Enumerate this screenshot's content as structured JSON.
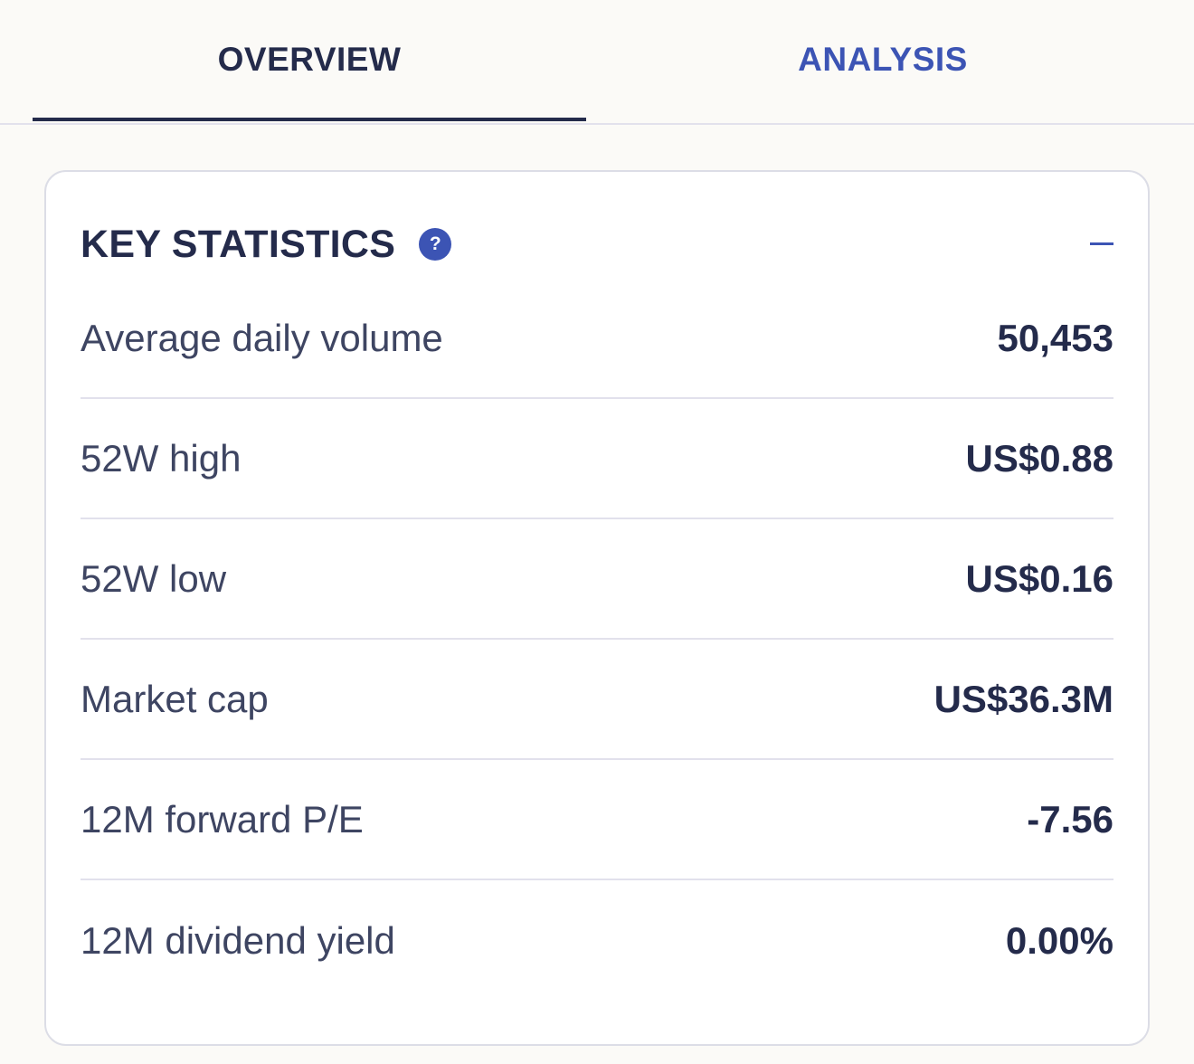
{
  "tabs": [
    {
      "label": "OVERVIEW",
      "active": true
    },
    {
      "label": "ANALYSIS",
      "active": false
    }
  ],
  "card": {
    "title": "KEY STATISTICS",
    "help_icon": "question-circle-icon",
    "collapse_icon": "minus-icon"
  },
  "stats": [
    {
      "label": "Average daily volume",
      "value": "50,453"
    },
    {
      "label": "52W high",
      "value": "US$0.88"
    },
    {
      "label": "52W low",
      "value": "US$0.16"
    },
    {
      "label": "Market cap",
      "value": "US$36.3M"
    },
    {
      "label": "12M forward P/E",
      "value": "-7.56"
    },
    {
      "label": "12M dividend yield",
      "value": "0.00%"
    }
  ],
  "colors": {
    "background": "#fbfaf7",
    "text_primary": "#242b4b",
    "accent": "#3c54b4",
    "divider": "#e2e1ec"
  }
}
